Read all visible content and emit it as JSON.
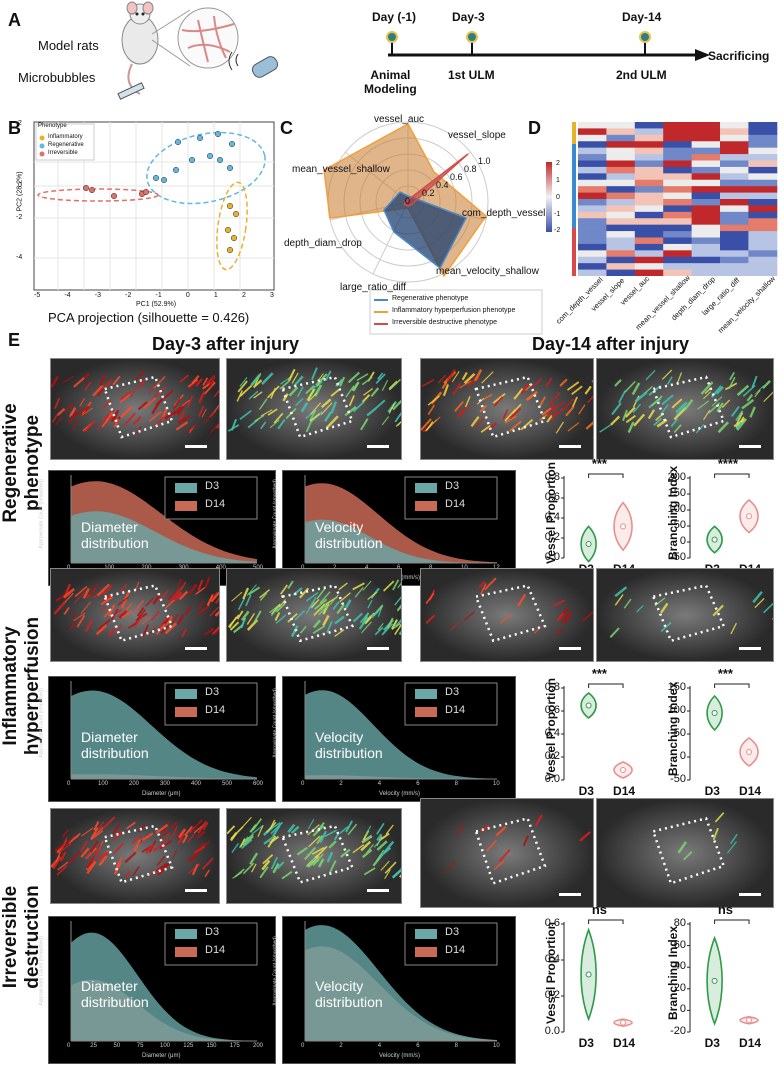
{
  "panel_letters": {
    "a": "A",
    "b": "B",
    "c": "C",
    "d": "D",
    "e": "E"
  },
  "panel_a": {
    "model_rats": "Model rats",
    "microbubbles": "Microbubbles",
    "timeline": [
      {
        "day": "Day (-1)",
        "event": "Animal\nModeling"
      },
      {
        "day": "Day-3",
        "event": "1st ULM"
      },
      {
        "day": "Day-14",
        "event": "2nd ULM"
      }
    ],
    "end_label": "Sacrificing"
  },
  "panel_b": {
    "legend_title": "Phenotype",
    "legend": [
      "Inflammatory",
      "Regenerative",
      "Irreversible"
    ],
    "colors": {
      "Inflammatory": "#e8b22a",
      "Regenerative": "#62b8de",
      "Irreversible": "#e2706a"
    },
    "xlabel": "PC1 (52.9%)",
    "ylabel": "PC2 (28.2%)",
    "caption": "PCA projection (silhouette = 0.426)",
    "xticks": [
      "-5",
      "-4",
      "-3",
      "-2",
      "-1",
      "0",
      "1",
      "2",
      "3"
    ],
    "yticks": [
      "2",
      "0",
      "-2",
      "-4"
    ]
  },
  "panel_c": {
    "axes": [
      "vessel_auc",
      "vessel_slope",
      "com_depth_vessel",
      "mean_velocity_shallow",
      "large_ratio_diff",
      "depth_diam_drop",
      "mean_vessel_shallow"
    ],
    "rticks": [
      "0",
      "0.2",
      "0.4",
      "0.6",
      "0.8",
      "1.0"
    ],
    "legend": [
      "Regenerative phenotype",
      "Inflammatory hyperperfusion phenotype",
      "Irreversible destructive phenotype"
    ]
  },
  "panel_d": {
    "columns": [
      "com_depth_vessel",
      "vessel_slope",
      "vessel_auc",
      "mean_vessel_shallow",
      "depth_diam_drop",
      "large_ratio_diff",
      "mean_velocity_shallow"
    ],
    "colorbar_ticks": [
      "2",
      "1",
      "0",
      "-1",
      "-2"
    ]
  },
  "panel_e": {
    "col_d3": "Day-3 after injury",
    "col_d14": "Day-14 after injury",
    "rows": [
      {
        "label": "Regenerative\nphenotype",
        "diam_ylabel": "Approximate Count (smoothed)",
        "diam_xlabel": "Diameter (μm)",
        "diam_xticks": [
          "0",
          "100",
          "200",
          "300",
          "400",
          "500"
        ],
        "vel_xlabel": "Velocity (mm/s)",
        "vel_xticks": [
          "0",
          "2",
          "4",
          "6",
          "8",
          "10",
          "12"
        ],
        "vp_yticks": [
          "0.8",
          "0.6",
          "0.4",
          "0.2",
          "0.0"
        ],
        "bi_yticks": [
          "200",
          "150",
          "100",
          "50",
          "0",
          "-50"
        ],
        "sig_vp": "***",
        "sig_bi": "****"
      },
      {
        "label": "Inflammatory\nhyperperfusion",
        "diam_ylabel": "Approximate Count (smoothed)",
        "diam_xlabel": "Diameter (μm)",
        "diam_xticks": [
          "0",
          "100",
          "200",
          "300",
          "400",
          "500",
          "600"
        ],
        "vel_xlabel": "Velocity (mm/s)",
        "vel_xticks": [
          "0",
          "2",
          "4",
          "6",
          "8",
          "10"
        ],
        "vp_yticks": [
          "0.8",
          "0.6",
          "0.4",
          "0.2",
          "0.0"
        ],
        "bi_yticks": [
          "150",
          "100",
          "50",
          "0",
          "-50"
        ],
        "sig_vp": "***",
        "sig_bi": "***"
      },
      {
        "label": "Irreversible\ndestruction",
        "diam_ylabel": "Approximate Count (smoothed)",
        "diam_xlabel": "Diameter (μm)",
        "diam_xticks": [
          "0",
          "25",
          "50",
          "75",
          "100",
          "125",
          "150",
          "175",
          "200"
        ],
        "vel_xlabel": "Velocity (mm/s)",
        "vel_xticks": [
          "0",
          "2",
          "4",
          "6",
          "8",
          "10"
        ],
        "vp_yticks": [
          "0.6",
          "0.4",
          "0.2",
          "0.0"
        ],
        "bi_yticks": [
          "80",
          "60",
          "40",
          "20",
          "0",
          "-20"
        ],
        "sig_vp": "ns",
        "sig_bi": "ns"
      }
    ],
    "legend_d3": "D3",
    "legend_d14": "D14",
    "diam_title": "Diameter\ndistribution",
    "vel_title": "Velocity\ndistribution",
    "vp_ylabel": "Vessel Proportion",
    "bi_ylabel": "Branching Index",
    "group_d3": "D3",
    "group_d14": "D14"
  },
  "colors": {
    "d3_fill": "#6aa8a8",
    "d14_fill": "#c96a56",
    "green": "#2e9a4a",
    "pink": "#e88f8f"
  }
}
